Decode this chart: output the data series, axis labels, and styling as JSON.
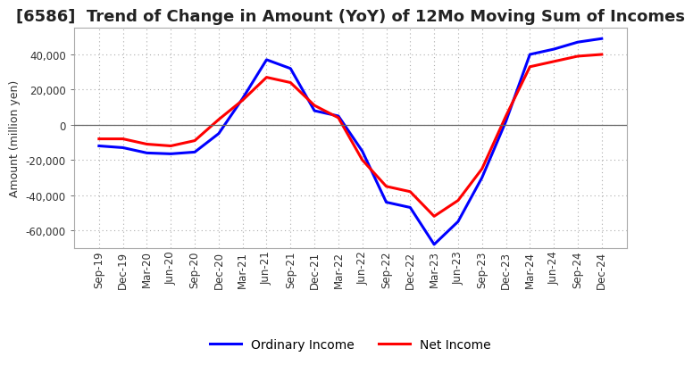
{
  "title": "[6586]  Trend of Change in Amount (YoY) of 12Mo Moving Sum of Incomes",
  "ylabel": "Amount (million yen)",
  "x_labels": [
    "Sep-19",
    "Dec-19",
    "Mar-20",
    "Jun-20",
    "Sep-20",
    "Dec-20",
    "Mar-21",
    "Jun-21",
    "Sep-21",
    "Dec-21",
    "Mar-22",
    "Jun-22",
    "Sep-22",
    "Dec-22",
    "Mar-23",
    "Jun-23",
    "Sep-23",
    "Dec-23",
    "Mar-24",
    "Jun-24",
    "Sep-24",
    "Dec-24"
  ],
  "ordinary_income": [
    -12000,
    -13000,
    -16000,
    -16500,
    -15500,
    -5000,
    15000,
    37000,
    32000,
    8000,
    5000,
    -15000,
    -44000,
    -47000,
    -68000,
    -55000,
    -30000,
    2000,
    40000,
    43000,
    47000,
    49000
  ],
  "net_income": [
    -8000,
    -8000,
    -11000,
    -12000,
    -9000,
    3000,
    14000,
    27000,
    24000,
    11000,
    4000,
    -20000,
    -35000,
    -38000,
    -52000,
    -43000,
    -25000,
    5000,
    33000,
    36000,
    39000,
    40000
  ],
  "ordinary_income_color": "#0000FF",
  "net_income_color": "#FF0000",
  "background_color": "#FFFFFF",
  "plot_bg_color": "#FFFFFF",
  "grid_color": "#AAAAAA",
  "ylim": [
    -70000,
    55000
  ],
  "yticks": [
    -60000,
    -40000,
    -20000,
    0,
    20000,
    40000
  ],
  "legend_ordinary": "Ordinary Income",
  "legend_net": "Net Income",
  "line_width": 2.2,
  "title_fontsize": 13,
  "axis_fontsize": 9,
  "tick_fontsize": 8.5,
  "legend_fontsize": 10
}
